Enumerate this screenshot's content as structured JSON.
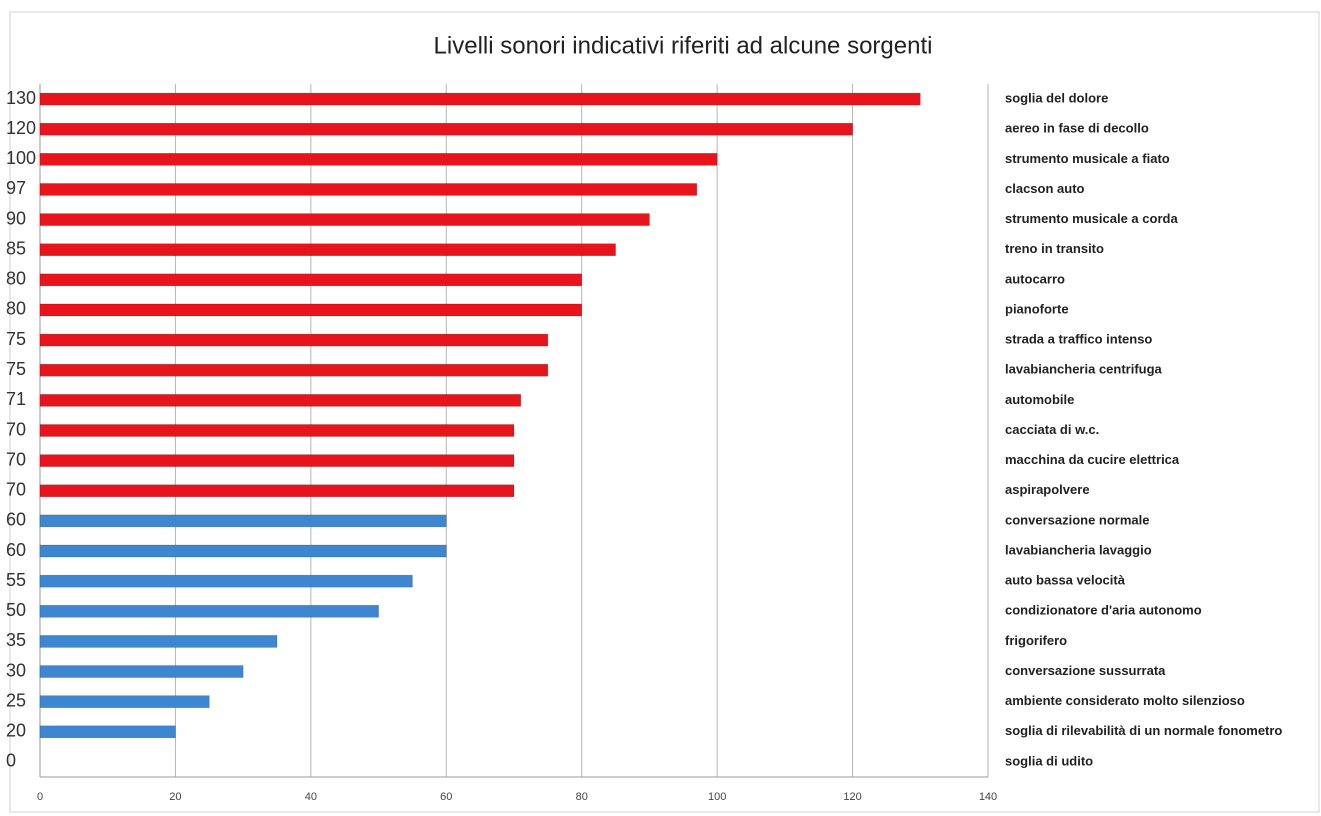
{
  "chart_data": {
    "type": "bar",
    "orientation": "horizontal",
    "title": "Livelli sonori indicativi riferiti ad alcune sorgenti",
    "categories": [
      "soglia del dolore",
      "aereo in fase di decollo",
      "strumento musicale a fiato",
      "clacson auto",
      "strumento musicale a corda",
      "treno in transito",
      "autocarro",
      "pianoforte",
      "strada a traffico intenso",
      "lavabiancheria centrifuga",
      "automobile",
      "cacciata di w.c.",
      "macchina da cucire elettrica",
      "aspirapolvere",
      "conversazione normale",
      "lavabiancheria lavaggio",
      "auto bassa velocità",
      "condizionatore d'aria autonomo",
      "frigorifero",
      "conversazione sussurrata",
      "ambiente considerato molto silenzioso",
      "soglia di rilevabilità di un normale fonometro",
      "soglia di udito"
    ],
    "values": [
      130,
      120,
      100,
      97,
      90,
      85,
      80,
      80,
      75,
      75,
      71,
      70,
      70,
      70,
      60,
      60,
      55,
      50,
      35,
      30,
      25,
      20,
      0
    ],
    "colors": [
      "#e8141c",
      "#e8141c",
      "#e8141c",
      "#e8141c",
      "#e8141c",
      "#e8141c",
      "#e8141c",
      "#e8141c",
      "#e8141c",
      "#e8141c",
      "#e8141c",
      "#e8141c",
      "#e8141c",
      "#e8141c",
      "#3f86d0",
      "#3f86d0",
      "#3f86d0",
      "#3f86d0",
      "#3f86d0",
      "#3f86d0",
      "#3f86d0",
      "#3f86d0",
      "#3f86d0"
    ],
    "xlim": [
      0,
      140
    ],
    "xticks": [
      0,
      20,
      40,
      60,
      80,
      100,
      120,
      140
    ],
    "grid": true
  }
}
